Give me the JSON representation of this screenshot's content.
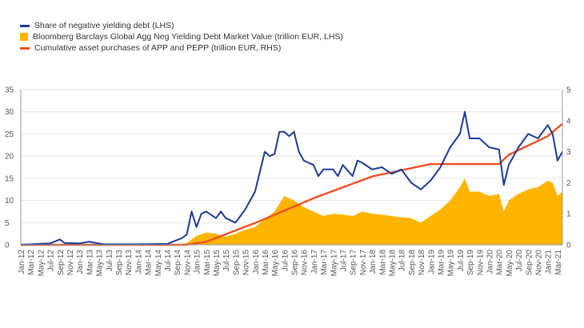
{
  "chart_data": {
    "type": "line",
    "x_ticks": [
      "Jan-12",
      "Mar-12",
      "May-12",
      "Jul-12",
      "Sep-12",
      "Nov-12",
      "Jan-13",
      "Mar-13",
      "May-13",
      "Jul-13",
      "Sep-13",
      "Nov-13",
      "Jan-14",
      "Mar-14",
      "May-14",
      "Jul-14",
      "Sep-14",
      "Nov-14",
      "Jan-15",
      "Mar-15",
      "May-15",
      "Jul-15",
      "Sep-15",
      "Nov-15",
      "Jan-16",
      "Mar-16",
      "May-16",
      "Jul-16",
      "Sep-16",
      "Nov-16",
      "Jan-17",
      "Mar-17",
      "May-17",
      "Jul-17",
      "Sep-17",
      "Nov-17",
      "Jan-18",
      "Mar-18",
      "May-18",
      "Jul-18",
      "Sep-18",
      "Nov-18",
      "Jan-19",
      "Mar-19",
      "May-19",
      "Jul-19",
      "Sep-19",
      "Nov-19",
      "Jan-20",
      "Mar-20",
      "May-20",
      "Jul-20",
      "Sep-20",
      "Nov-20",
      "Jan-21",
      "Mar-21"
    ],
    "y_left": {
      "ticks": [
        0,
        5,
        10,
        15,
        20,
        25,
        30,
        35
      ],
      "range": [
        0,
        35
      ]
    },
    "y_right": {
      "ticks": [
        0,
        1,
        2,
        3,
        4,
        5
      ],
      "range": [
        0,
        5
      ]
    },
    "grid": true,
    "legend_position": "top-left",
    "series": [
      {
        "name": "Share of negative yielding debt (LHS)",
        "kind": "line",
        "axis": "left",
        "color": "#1f3a93",
        "points": [
          [
            "Jan-12",
            0
          ],
          [
            "Jul-12",
            0.3
          ],
          [
            "Sep-12",
            1.2
          ],
          [
            "Oct-12",
            0.4
          ],
          [
            "Jan-13",
            0.3
          ],
          [
            "Mar-13",
            0.7
          ],
          [
            "Jun-13",
            0.1
          ],
          [
            "Jan-14",
            0.1
          ],
          [
            "Jul-14",
            0.2
          ],
          [
            "Oct-14",
            1.5
          ],
          [
            "Nov-14",
            2.3
          ],
          [
            "Dec-14",
            7.5
          ],
          [
            "Jan-15",
            4
          ],
          [
            "Feb-15",
            7
          ],
          [
            "Mar-15",
            7.5
          ],
          [
            "May-15",
            6
          ],
          [
            "Jun-15",
            7.5
          ],
          [
            "Jul-15",
            6
          ],
          [
            "Sep-15",
            5
          ],
          [
            "Oct-15",
            6.5
          ],
          [
            "Nov-15",
            8
          ],
          [
            "Dec-15",
            10
          ],
          [
            "Jan-16",
            12
          ],
          [
            "Feb-16",
            16.5
          ],
          [
            "Mar-16",
            21
          ],
          [
            "Apr-16",
            20
          ],
          [
            "May-16",
            20.5
          ],
          [
            "Jun-16",
            25.5
          ],
          [
            "Jul-16",
            25.5
          ],
          [
            "Aug-16",
            24.5
          ],
          [
            "Sep-16",
            25.5
          ],
          [
            "Oct-16",
            21
          ],
          [
            "Nov-16",
            19
          ],
          [
            "Jan-17",
            18
          ],
          [
            "Feb-17",
            15.5
          ],
          [
            "Mar-17",
            17
          ],
          [
            "May-17",
            17
          ],
          [
            "Jun-17",
            15.5
          ],
          [
            "Jul-17",
            18
          ],
          [
            "Sep-17",
            15.5
          ],
          [
            "Oct-17",
            19
          ],
          [
            "Nov-17",
            18.5
          ],
          [
            "Jan-18",
            17
          ],
          [
            "Mar-18",
            17.5
          ],
          [
            "May-18",
            16
          ],
          [
            "Jul-18",
            17
          ],
          [
            "Sep-18",
            14
          ],
          [
            "Nov-18",
            12.5
          ],
          [
            "Jan-19",
            14.5
          ],
          [
            "Mar-19",
            17.5
          ],
          [
            "May-19",
            22
          ],
          [
            "Jul-19",
            25
          ],
          [
            "Aug-19",
            30
          ],
          [
            "Sep-19",
            24
          ],
          [
            "Nov-19",
            24
          ],
          [
            "Jan-20",
            22
          ],
          [
            "Mar-20",
            21.5
          ],
          [
            "Apr-20",
            13.5
          ],
          [
            "May-20",
            18
          ],
          [
            "Jul-20",
            22
          ],
          [
            "Sep-20",
            25
          ],
          [
            "Nov-20",
            24
          ],
          [
            "Jan-21",
            27
          ],
          [
            "Feb-21",
            25
          ],
          [
            "Mar-21",
            19
          ],
          [
            "Apr-21",
            21
          ]
        ]
      },
      {
        "name": "Bloomberg Barclays Global Agg Neg Yielding Debt Market Value (trillion EUR, LHS)",
        "kind": "area",
        "axis": "left",
        "color": "#ffb400",
        "points": [
          [
            "Jan-12",
            0
          ],
          [
            "Sep-14",
            0
          ],
          [
            "Nov-14",
            0.4
          ],
          [
            "Jan-15",
            2
          ],
          [
            "Mar-15",
            2.8
          ],
          [
            "May-15",
            2.5
          ],
          [
            "Jul-15",
            1.8
          ],
          [
            "Sep-15",
            2.5
          ],
          [
            "Nov-15",
            3.4
          ],
          [
            "Jan-16",
            4
          ],
          [
            "Mar-16",
            5.8
          ],
          [
            "May-16",
            7.5
          ],
          [
            "Jul-16",
            11
          ],
          [
            "Sep-16",
            10
          ],
          [
            "Nov-16",
            8.5
          ],
          [
            "Jan-17",
            7.5
          ],
          [
            "Mar-17",
            6.5
          ],
          [
            "May-17",
            7
          ],
          [
            "Jul-17",
            6.8
          ],
          [
            "Sep-17",
            6.5
          ],
          [
            "Nov-17",
            7.5
          ],
          [
            "Jan-18",
            7
          ],
          [
            "Mar-18",
            6.8
          ],
          [
            "May-18",
            6.5
          ],
          [
            "Jul-18",
            6.2
          ],
          [
            "Sep-18",
            6
          ],
          [
            "Nov-18",
            5
          ],
          [
            "Jan-19",
            6.5
          ],
          [
            "Mar-19",
            8
          ],
          [
            "May-19",
            10
          ],
          [
            "Jul-19",
            13
          ],
          [
            "Aug-19",
            15
          ],
          [
            "Sep-19",
            12
          ],
          [
            "Nov-19",
            12
          ],
          [
            "Jan-20",
            11
          ],
          [
            "Mar-20",
            11.5
          ],
          [
            "Apr-20",
            7.5
          ],
          [
            "May-20",
            10
          ],
          [
            "Jul-20",
            11.5
          ],
          [
            "Sep-20",
            12.5
          ],
          [
            "Nov-20",
            13
          ],
          [
            "Jan-21",
            14.5
          ],
          [
            "Feb-21",
            14
          ],
          [
            "Mar-21",
            11
          ],
          [
            "Apr-21",
            12
          ]
        ]
      },
      {
        "name": "Cumulative asset purchases of APP and PEPP (trillion EUR, RHS)",
        "kind": "line",
        "axis": "right",
        "color": "#f04e23",
        "points": [
          [
            "Jan-12",
            0
          ],
          [
            "Nov-14",
            0
          ],
          [
            "Jan-15",
            0.05
          ],
          [
            "Mar-15",
            0.1
          ],
          [
            "Jan-16",
            0.7
          ],
          [
            "Jan-17",
            1.5
          ],
          [
            "Jan-18",
            2.2
          ],
          [
            "Jan-19",
            2.6
          ],
          [
            "Mar-20",
            2.6
          ],
          [
            "May-20",
            2.9
          ],
          [
            "Jan-21",
            3.5
          ],
          [
            "Apr-21",
            3.9
          ]
        ]
      }
    ]
  }
}
